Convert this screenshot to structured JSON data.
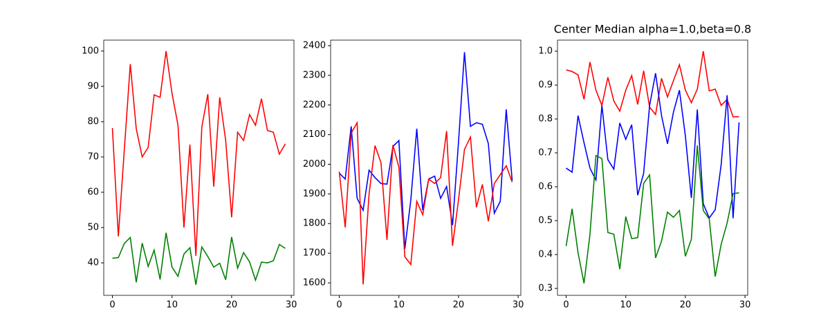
{
  "chart_data": [
    {
      "type": "line",
      "x": [
        0,
        1,
        2,
        3,
        4,
        5,
        6,
        7,
        8,
        9,
        10,
        11,
        12,
        13,
        14,
        15,
        16,
        17,
        18,
        19,
        20,
        21,
        22,
        23,
        24,
        25,
        26,
        27,
        28,
        29
      ],
      "series": [
        {
          "color": "#ff0000",
          "values": [
            78.2,
            47.5,
            72,
            96.3,
            78,
            70,
            72.7,
            87.6,
            86.9,
            100,
            88,
            79,
            50,
            73.5,
            42,
            78.5,
            87.8,
            61.6,
            86.9,
            74.7,
            52.9,
            77,
            74.7,
            82,
            79,
            86.5,
            77.5,
            77,
            70.8,
            73.7
          ]
        },
        {
          "color": "#008000",
          "values": [
            41.3,
            41.5,
            45.5,
            47.2,
            34.5,
            45.6,
            39,
            43.6,
            35.3,
            48.5,
            38.8,
            36.2,
            42.5,
            44.3,
            33.8,
            44.5,
            41.8,
            38.8,
            39.9,
            35.2,
            47.3,
            38.5,
            42.9,
            40.3,
            35.1,
            40.2,
            40,
            40.6,
            45.2,
            44.1
          ]
        }
      ],
      "xlim": [
        -1.45,
        30.45
      ],
      "xticks": [
        0,
        10,
        20,
        30
      ],
      "ylim": [
        30.8,
        103.1
      ],
      "yticks": [
        40,
        50,
        60,
        70,
        80,
        90,
        100
      ]
    },
    {
      "type": "line",
      "x": [
        0,
        1,
        2,
        3,
        4,
        5,
        6,
        7,
        8,
        9,
        10,
        11,
        12,
        13,
        14,
        15,
        16,
        17,
        18,
        19,
        20,
        21,
        22,
        23,
        24,
        25,
        26,
        27,
        28,
        29
      ],
      "series": [
        {
          "color": "#0000ff",
          "values": [
            1970,
            1950,
            2128,
            1885,
            1845,
            1980,
            1955,
            1935,
            1933,
            2060,
            2080,
            1715,
            1880,
            2120,
            1845,
            1950,
            1960,
            1885,
            1925,
            1795,
            2075,
            2378,
            2128,
            2140,
            2135,
            2070,
            1835,
            1875,
            2185,
            1945
          ]
        },
        {
          "color": "#ff0000",
          "values": [
            1975,
            1787,
            2105,
            2140,
            1595,
            1900,
            2063,
            2005,
            1745,
            2065,
            1990,
            1688,
            1662,
            1875,
            1830,
            1950,
            1935,
            1955,
            2112,
            1725,
            1880,
            2050,
            2092,
            1855,
            1932,
            1808,
            1935,
            1965,
            1995,
            1940
          ]
        }
      ],
      "xlim": [
        -1.45,
        30.45
      ],
      "xticks": [
        0,
        10,
        20,
        30
      ],
      "ylim": [
        1558,
        2418.7
      ],
      "yticks": [
        1600,
        1700,
        1800,
        1900,
        2000,
        2100,
        2200,
        2300,
        2400
      ]
    },
    {
      "type": "line",
      "title": "Center Median alpha=1.0,beta=0.8",
      "x": [
        0,
        1,
        2,
        3,
        4,
        5,
        6,
        7,
        8,
        9,
        10,
        11,
        12,
        13,
        14,
        15,
        16,
        17,
        18,
        19,
        20,
        21,
        22,
        23,
        24,
        25,
        26,
        27,
        28,
        29
      ],
      "series": [
        {
          "color": "#ff0000",
          "values": [
            0.945,
            0.94,
            0.93,
            0.858,
            0.968,
            0.885,
            0.84,
            0.923,
            0.853,
            0.823,
            0.885,
            0.928,
            0.843,
            0.942,
            0.835,
            0.813,
            0.92,
            0.865,
            0.913,
            0.96,
            0.885,
            0.848,
            0.888,
            1.0,
            0.883,
            0.888,
            0.84,
            0.858,
            0.806,
            0.807
          ]
        },
        {
          "color": "#0000ff",
          "values": [
            0.655,
            0.643,
            0.81,
            0.73,
            0.655,
            0.62,
            0.84,
            0.68,
            0.652,
            0.788,
            0.74,
            0.783,
            0.575,
            0.64,
            0.84,
            0.935,
            0.81,
            0.727,
            0.82,
            0.885,
            0.75,
            0.567,
            0.828,
            0.55,
            0.508,
            0.532,
            0.665,
            0.87,
            0.507,
            0.79
          ]
        },
        {
          "color": "#008000",
          "values": [
            0.425,
            0.535,
            0.405,
            0.315,
            0.46,
            0.692,
            0.683,
            0.465,
            0.46,
            0.357,
            0.512,
            0.447,
            0.45,
            0.61,
            0.635,
            0.39,
            0.44,
            0.525,
            0.51,
            0.53,
            0.395,
            0.445,
            0.722,
            0.53,
            0.505,
            0.335,
            0.43,
            0.493,
            0.58,
            0.582
          ]
        }
      ],
      "xlim": [
        -1.45,
        30.45
      ],
      "xticks": [
        0,
        10,
        20,
        30
      ],
      "ylim": [
        0.2796,
        1.0327
      ],
      "yticks": [
        {
          "value": 0.3,
          "label": "0.3"
        },
        {
          "value": 0.4,
          "label": "0.4"
        },
        {
          "value": 0.5,
          "label": "0.5"
        },
        {
          "value": 0.6,
          "label": "0.6"
        },
        {
          "value": 0.7,
          "label": "0.7"
        },
        {
          "value": 0.8,
          "label": "0.8"
        },
        {
          "value": 0.9,
          "label": "0.9"
        },
        {
          "value": 1.0,
          "label": "1.0"
        }
      ]
    }
  ]
}
